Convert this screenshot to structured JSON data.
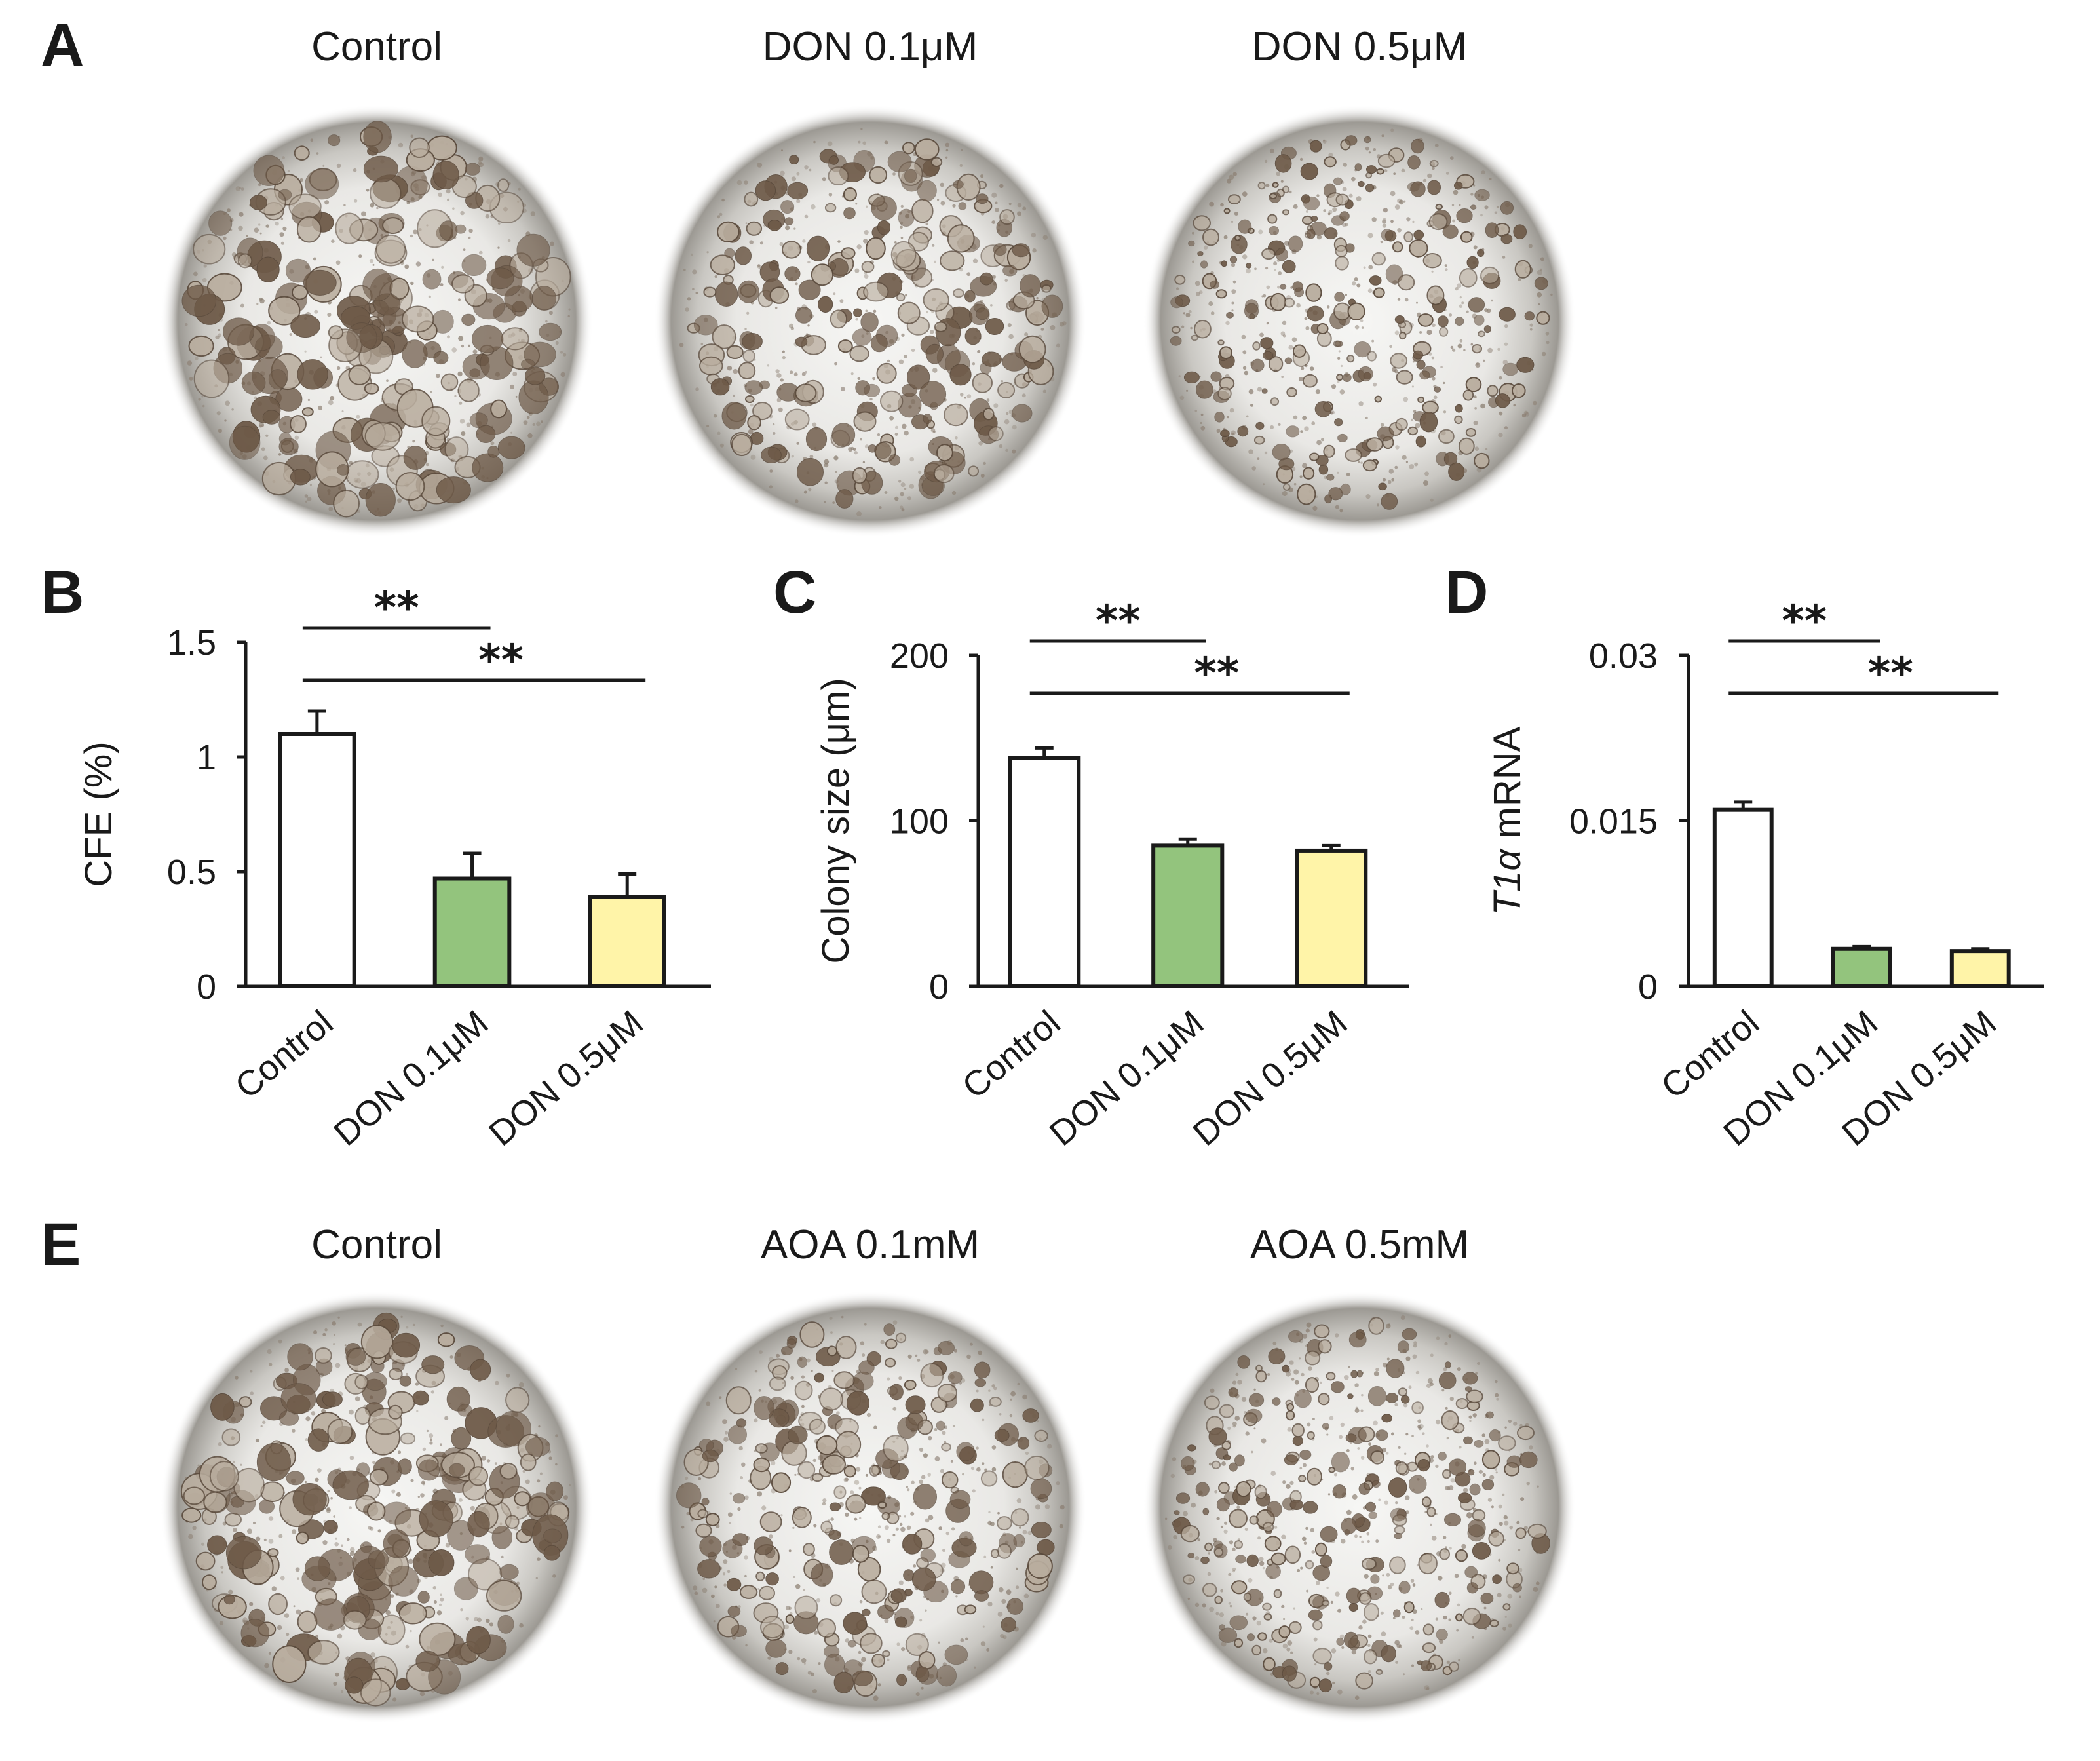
{
  "panels": {
    "A": {
      "letter": "A",
      "images": [
        {
          "title": "Control",
          "icon": "organoid-micrograph",
          "density": "large-colonies"
        },
        {
          "title": "DON 0.1μM",
          "icon": "organoid-micrograph",
          "density": "medium-colonies"
        },
        {
          "title": "DON 0.5μM",
          "icon": "organoid-micrograph",
          "density": "small-colonies"
        }
      ]
    },
    "E": {
      "letter": "E",
      "images": [
        {
          "title": "Control",
          "icon": "organoid-micrograph",
          "density": "large-colonies"
        },
        {
          "title": "AOA 0.1mM",
          "icon": "organoid-micrograph",
          "density": "medium-colonies"
        },
        {
          "title": "AOA 0.5mM",
          "icon": "organoid-micrograph",
          "density": "small-colonies"
        }
      ]
    }
  },
  "colors": {
    "control": "#ffffff",
    "don_low": "#93c47d",
    "don_high": "#fff4a8",
    "ink": "#1a1a1a"
  },
  "chart_data": [
    {
      "letter": "B",
      "type": "bar",
      "title": "",
      "ylabel": "CFE (%)",
      "xlabel": "",
      "categories": [
        "Control",
        "DON 0.1μM",
        "DON 0.5μM"
      ],
      "values": [
        1.1,
        0.47,
        0.39
      ],
      "errors": [
        0.1,
        0.11,
        0.1
      ],
      "ylim": [
        0,
        1.5
      ],
      "yticks": [
        0,
        0.5,
        1,
        1.5
      ],
      "ytick_labels": [
        "0",
        "0.5",
        "1",
        "1.5"
      ],
      "significance": [
        {
          "from": 0,
          "to": 1,
          "label": "**"
        },
        {
          "from": 0,
          "to": 2,
          "label": "**"
        }
      ]
    },
    {
      "letter": "C",
      "type": "bar",
      "title": "",
      "ylabel": "Colony size (μm)",
      "xlabel": "",
      "categories": [
        "Control",
        "DON 0.1μM",
        "DON 0.5μM"
      ],
      "values": [
        138,
        85,
        82
      ],
      "errors": [
        6,
        4,
        3
      ],
      "ylim": [
        0,
        200
      ],
      "yticks": [
        0,
        100,
        200
      ],
      "ytick_labels": [
        "0",
        "100",
        "200"
      ],
      "significance": [
        {
          "from": 0,
          "to": 1,
          "label": "**"
        },
        {
          "from": 0,
          "to": 2,
          "label": "**"
        }
      ]
    },
    {
      "letter": "D",
      "type": "bar",
      "title": "",
      "ylabel_italic": "T1α",
      "ylabel_rest": " mRNA",
      "xlabel": "",
      "categories": [
        "Control",
        "DON 0.1μM",
        "DON 0.5μM"
      ],
      "values": [
        0.016,
        0.0034,
        0.0032
      ],
      "errors": [
        0.0007,
        0.0002,
        0.0002
      ],
      "ylim": [
        0,
        0.03
      ],
      "yticks": [
        0,
        0.015,
        0.03
      ],
      "ytick_labels": [
        "0",
        "0.015",
        "0.03"
      ],
      "significance": [
        {
          "from": 0,
          "to": 1,
          "label": "**"
        },
        {
          "from": 0,
          "to": 2,
          "label": "**"
        }
      ]
    }
  ]
}
